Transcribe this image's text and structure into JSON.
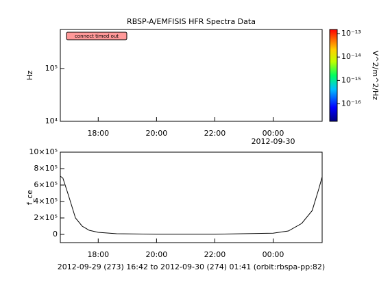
{
  "chart_data": [
    {
      "type": "spectrogram",
      "title": "RBSP-A/EMFISIS  HFR Spectra Data",
      "ylabel": "Hz",
      "annotation": "connect timed out",
      "annotation_color": "#ff9999",
      "log_y": true,
      "ylim": [
        10000,
        550000
      ],
      "yticks": [
        {
          "value": 10000,
          "label": "10⁴"
        },
        {
          "value": 100000,
          "label": "10⁵"
        }
      ],
      "xlim": [
        16.7,
        25.68
      ],
      "xticks": [
        {
          "value": 18,
          "label": "18:00"
        },
        {
          "value": 20,
          "label": "20:00"
        },
        {
          "value": 22,
          "label": "22:00"
        },
        {
          "value": 24,
          "label": "00:00"
        }
      ],
      "x_date_label": "2012-09-30",
      "colorbar": {
        "label": "V^2/m^2/Hz",
        "log": true,
        "zlim": [
          1.8e-17,
          1.5e-13
        ],
        "zticks": [
          {
            "value": 1e-13,
            "label": "10⁻¹³"
          },
          {
            "value": 1e-14,
            "label": "10⁻¹⁴"
          },
          {
            "value": 1e-15,
            "label": "10⁻¹⁵"
          },
          {
            "value": 1e-16,
            "label": "10⁻¹⁶"
          }
        ]
      }
    },
    {
      "type": "line",
      "ylabel": "f_ce",
      "xlabel": "2012-09-29 (273) 16:42 to 2012-09-30 (274) 01:41 (orbit:rbspa-pp:82)",
      "x": [
        16.7,
        16.79,
        16.98,
        17.22,
        17.45,
        17.69,
        18.0,
        18.63,
        20,
        22,
        24,
        24.52,
        24.98,
        25.34,
        25.57,
        25.68
      ],
      "series": [
        {
          "color": "#000000",
          "values": [
            708000,
            683000,
            475000,
            200000,
            100000,
            50000,
            25000,
            8000,
            2000,
            2000,
            15000,
            42000,
            133000,
            290000,
            558000,
            700000
          ]
        }
      ],
      "ylim": [
        -100000,
        1000000
      ],
      "yticks": [
        {
          "value": 0,
          "label": "0"
        },
        {
          "value": 200000,
          "label": "2×10⁵"
        },
        {
          "value": 400000,
          "label": "4×10⁵"
        },
        {
          "value": 600000,
          "label": "6×10⁵"
        },
        {
          "value": 800000,
          "label": "8×10⁵"
        },
        {
          "value": 1000000,
          "label": "10×10⁵"
        }
      ],
      "xlim": [
        16.7,
        25.68
      ],
      "xticks": [
        {
          "value": 18,
          "label": "18:00"
        },
        {
          "value": 20,
          "label": "20:00"
        },
        {
          "value": 22,
          "label": "22:00"
        },
        {
          "value": 24,
          "label": "00:00"
        }
      ]
    }
  ]
}
